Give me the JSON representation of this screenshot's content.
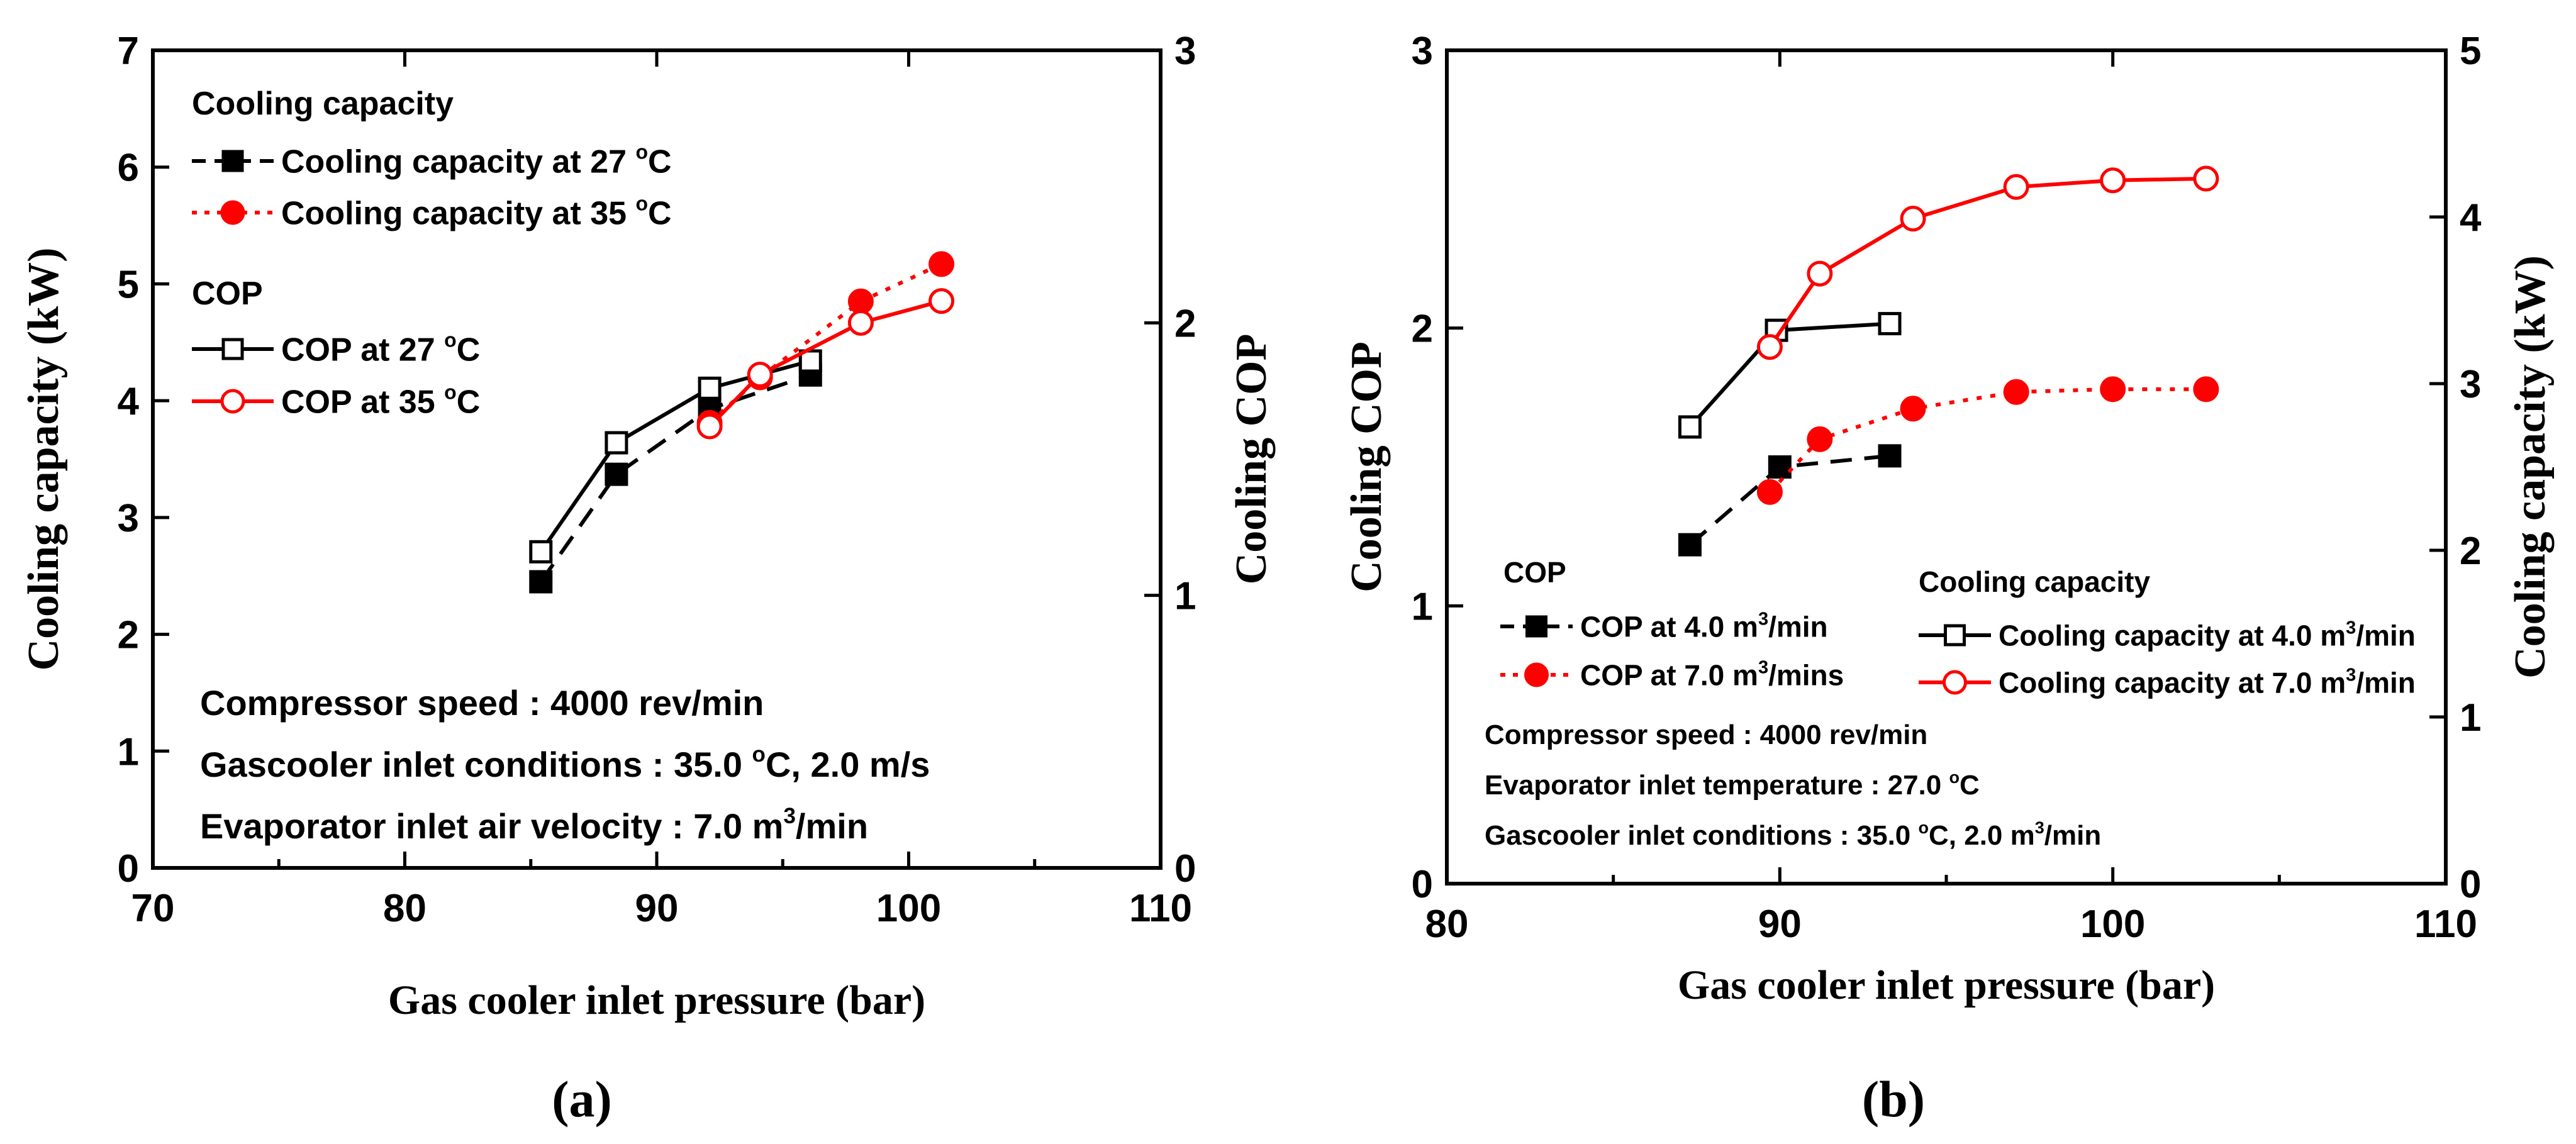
{
  "panels": {
    "a": "(a)",
    "b": "(b)"
  },
  "chart_data": [
    {
      "type": "line",
      "panel": "a",
      "xlabel": "Gas cooler inlet pressure (bar)",
      "ylabel_left": "Cooling capacity (kW)",
      "ylabel_right": "Cooling COP",
      "xlim": [
        70,
        110
      ],
      "ylim_left": [
        0,
        7
      ],
      "ylim_right": [
        0,
        3
      ],
      "xticks": [
        70,
        80,
        90,
        100,
        110
      ],
      "yticks_left": [
        0,
        1,
        2,
        3,
        4,
        5,
        6,
        7
      ],
      "yticks_right": [
        0,
        1,
        2,
        3
      ],
      "legend": {
        "group1_title": "Cooling capacity",
        "group2_title": "COP"
      },
      "series": [
        {
          "name": "Cooling capacity at 27 °C",
          "label_main": "Cooling capacity at 27 ",
          "label_sup": "o",
          "label_end": "C",
          "axis": "left",
          "marker": "square-filled",
          "line": "dashed",
          "color": "#000000",
          "x": [
            85.4,
            88.4,
            92.1,
            96.1
          ],
          "y": [
            2.45,
            3.37,
            3.93,
            4.22
          ]
        },
        {
          "name": "Cooling capacity at 35 °C",
          "label_main": "Cooling capacity at 35 ",
          "label_sup": "o",
          "label_end": "C",
          "axis": "left",
          "marker": "circle-filled",
          "line": "dotted",
          "color": "#ff0000",
          "x": [
            92.1,
            94.1,
            98.1,
            101.3
          ],
          "y": [
            3.81,
            4.2,
            4.85,
            5.17
          ]
        },
        {
          "name": "COP at 27 °C",
          "label_main": "COP at  27 ",
          "label_sup": "o",
          "label_end": "C",
          "axis": "right",
          "marker": "square-open",
          "line": "solid",
          "color": "#000000",
          "x": [
            85.4,
            88.4,
            92.1,
            96.1
          ],
          "y": [
            1.16,
            1.56,
            1.76,
            1.86
          ]
        },
        {
          "name": "COP at 35 °C",
          "label_main": "COP at  35 ",
          "label_sup": "o",
          "label_end": "C",
          "axis": "right",
          "marker": "circle-open",
          "line": "solid",
          "color": "#ff0000",
          "x": [
            92.1,
            94.1,
            98.1,
            101.3
          ],
          "y": [
            1.62,
            1.81,
            2.0,
            2.08
          ]
        }
      ],
      "annotations": [
        {
          "text": "Compressor speed : 4000 rev/min"
        },
        {
          "text": "Gascooler inlet conditions :  35.0 ",
          "sup": "o",
          "tail": "C,  2.0 m/s"
        },
        {
          "text": "Evaporator inlet air velocity : 7.0 m",
          "sup": "3",
          "tail": "/min"
        }
      ]
    },
    {
      "type": "line",
      "panel": "b",
      "xlabel": "Gas cooler inlet pressure (bar)",
      "ylabel_left": "Cooling COP",
      "ylabel_right": "Cooling capacity (kW)",
      "xlim": [
        80,
        110
      ],
      "ylim_left": [
        0,
        3
      ],
      "ylim_right": [
        0,
        5
      ],
      "xticks": [
        80,
        90,
        100,
        110
      ],
      "yticks_left": [
        0,
        1,
        2,
        3
      ],
      "yticks_right": [
        0,
        1,
        2,
        3,
        4,
        5
      ],
      "legend": {
        "group1_title": "COP",
        "group2_title": "Cooling capacity"
      },
      "series": [
        {
          "name": "COP at 4.0 m3/min",
          "label_main": "COP at 4.0 m",
          "label_sup": "3",
          "label_end": "/min",
          "axis": "left",
          "marker": "square-filled",
          "line": "dashed",
          "color": "#000000",
          "x": [
            87.3,
            90.0,
            93.3
          ],
          "y": [
            1.22,
            1.5,
            1.54
          ]
        },
        {
          "name": "COP at 7.0 m3/mins",
          "label_main": "COP at 7.0 m",
          "label_sup": "3",
          "label_end": "/mins",
          "axis": "left",
          "marker": "circle-filled",
          "line": "dotted",
          "color": "#ff0000",
          "x": [
            89.7,
            91.2,
            94.0,
            97.1,
            100.0,
            102.8
          ],
          "y": [
            1.41,
            1.6,
            1.71,
            1.77,
            1.78,
            1.78
          ]
        },
        {
          "name": "Cooling capacity at 4.0 m3/min",
          "label_main": "Cooling capacity at 4.0 m",
          "label_sup": "3",
          "label_end": "/min",
          "axis": "right",
          "marker": "square-open",
          "line": "solid",
          "color": "#000000",
          "x": [
            87.3,
            89.9,
            93.3
          ],
          "y": [
            2.74,
            3.32,
            3.36
          ]
        },
        {
          "name": "Cooling capacity at 7.0 m3/min",
          "label_main": "Cooling capacity at 7.0 m",
          "label_sup": "3",
          "label_end": "/min",
          "axis": "right",
          "marker": "circle-open",
          "line": "solid",
          "color": "#ff0000",
          "x": [
            89.7,
            91.2,
            94.0,
            97.1,
            100.0,
            102.8
          ],
          "y": [
            3.22,
            3.66,
            3.99,
            4.18,
            4.22,
            4.23
          ]
        }
      ],
      "annotations": [
        {
          "text": "Compressor speed : 4000 rev/min"
        },
        {
          "text": "Evaporator inlet temperature :  27.0 ",
          "sup": "o",
          "tail": "C"
        },
        {
          "text": "Gascooler inlet conditions : 35.0 ",
          "sup": "o",
          "tail": "C, 2.0 m",
          "sup2": "3",
          "tail2": "/min"
        }
      ]
    }
  ]
}
